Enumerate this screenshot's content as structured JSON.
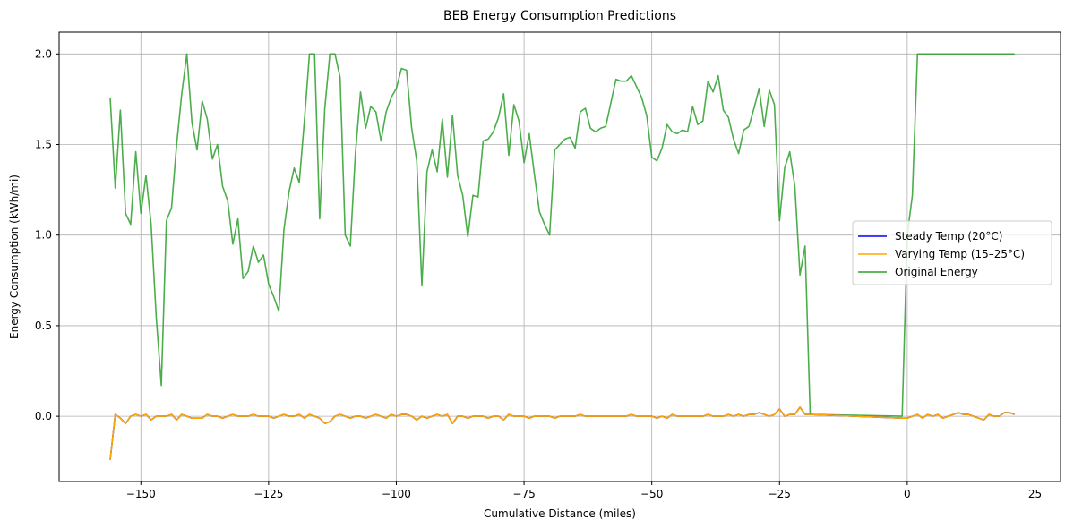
{
  "chart_data": {
    "type": "line",
    "title": "BEB Energy Consumption Predictions",
    "xlabel": "Cumulative Distance (miles)",
    "ylabel": "Energy Consumption (kWh/mi)",
    "xlim": [
      -166,
      30
    ],
    "ylim": [
      -0.36,
      2.12
    ],
    "xticks": [
      -150,
      -125,
      -100,
      -75,
      -50,
      -25,
      0,
      25
    ],
    "xtick_labels": [
      "−150",
      "−125",
      "−100",
      "−75",
      "−50",
      "−25",
      "0",
      "25"
    ],
    "yticks": [
      0.0,
      0.5,
      1.0,
      1.5,
      2.0
    ],
    "ytick_labels": [
      "0.0",
      "0.5",
      "1.0",
      "1.5",
      "2.0"
    ],
    "grid": true,
    "legend_position": "center-right",
    "series": [
      {
        "name": "Steady Temp (20°C)",
        "color": "#0000ff",
        "x": [
          -156,
          -155,
          -154,
          -153,
          -152,
          -151,
          -150,
          -149,
          -148,
          -147,
          -146,
          -145,
          -144,
          -143,
          -142,
          -141,
          -140,
          -139,
          -138,
          -137,
          -136,
          -135,
          -134,
          -133,
          -132,
          -131,
          -130,
          -129,
          -128,
          -127,
          -126,
          -125,
          -124,
          -123,
          -122,
          -121,
          -120,
          -119,
          -118,
          -117,
          -116,
          -115,
          -114,
          -113,
          -112,
          -111,
          -110,
          -109,
          -108,
          -107,
          -106,
          -105,
          -104,
          -103,
          -102,
          -101,
          -100,
          -99,
          -98,
          -97,
          -96,
          -95,
          -94,
          -93,
          -92,
          -91,
          -90,
          -89,
          -88,
          -87,
          -86,
          -85,
          -84,
          -83,
          -82,
          -81,
          -80,
          -79,
          -78,
          -77,
          -76,
          -75,
          -74,
          -73,
          -72,
          -71,
          -70,
          -69,
          -68,
          -67,
          -66,
          -65,
          -64,
          -63,
          -62,
          -61,
          -60,
          -59,
          -58,
          -57,
          -56,
          -55,
          -54,
          -53,
          -52,
          -51,
          -50,
          -49,
          -48,
          -47,
          -46,
          -45,
          -44,
          -43,
          -42,
          -41,
          -40,
          -39,
          -38,
          -37,
          -36,
          -35,
          -34,
          -33,
          -32,
          -31,
          -30,
          -29,
          -28,
          -27,
          -26,
          -25,
          -24,
          -23,
          -22,
          -21,
          -20,
          -19,
          -1,
          0,
          1,
          2,
          3,
          4,
          5,
          6,
          7,
          8,
          9,
          10,
          11,
          12,
          13,
          14,
          15,
          16,
          17,
          18,
          19,
          20,
          21
        ],
        "values": [
          -0.24,
          0.01,
          -0.01,
          -0.04,
          0.0,
          0.01,
          0.0,
          0.01,
          -0.02,
          0.0,
          0.0,
          0.0,
          0.01,
          -0.02,
          0.01,
          0.0,
          -0.01,
          -0.01,
          -0.01,
          0.01,
          0.0,
          0.0,
          -0.01,
          0.0,
          0.01,
          0.0,
          0.0,
          0.0,
          0.01,
          0.0,
          0.0,
          0.0,
          -0.01,
          0.0,
          0.01,
          0.0,
          0.0,
          0.01,
          -0.01,
          0.01,
          0.0,
          -0.01,
          -0.04,
          -0.03,
          0.0,
          0.01,
          0.0,
          -0.01,
          0.0,
          0.0,
          -0.01,
          0.0,
          0.01,
          0.0,
          -0.01,
          0.01,
          0.0,
          0.01,
          0.01,
          0.0,
          -0.02,
          0.0,
          -0.01,
          0.0,
          0.01,
          0.0,
          0.01,
          -0.04,
          0.0,
          0.0,
          -0.01,
          0.0,
          0.0,
          0.0,
          -0.01,
          0.0,
          0.0,
          -0.02,
          0.01,
          0.0,
          0.0,
          0.0,
          -0.01,
          0.0,
          0.0,
          0.0,
          0.0,
          -0.01,
          0.0,
          0.0,
          0.0,
          0.0,
          0.01,
          0.0,
          0.0,
          0.0,
          0.0,
          0.0,
          0.0,
          0.0,
          0.0,
          0.0,
          0.01,
          0.0,
          0.0,
          0.0,
          0.0,
          -0.01,
          0.0,
          -0.01,
          0.01,
          0.0,
          0.0,
          0.0,
          0.0,
          0.0,
          0.0,
          0.01,
          0.0,
          0.0,
          0.0,
          0.01,
          0.0,
          0.01,
          0.0,
          0.01,
          0.01,
          0.02,
          0.01,
          0.0,
          0.01,
          0.04,
          0.0,
          0.01,
          0.01,
          0.05,
          0.01,
          0.01,
          -0.01,
          -0.01,
          0.0,
          0.01,
          -0.01,
          0.01,
          0.0,
          0.01,
          -0.01,
          0.0,
          0.01,
          0.02,
          0.01,
          0.01,
          0.0,
          -0.01,
          -0.02,
          0.01,
          0.0,
          0.0,
          0.02,
          0.02,
          0.01
        ]
      },
      {
        "name": "Varying Temp (15–25°C)",
        "color": "#ffa500",
        "x": [
          -156,
          -155,
          -154,
          -153,
          -152,
          -151,
          -150,
          -149,
          -148,
          -147,
          -146,
          -145,
          -144,
          -143,
          -142,
          -141,
          -140,
          -139,
          -138,
          -137,
          -136,
          -135,
          -134,
          -133,
          -132,
          -131,
          -130,
          -129,
          -128,
          -127,
          -126,
          -125,
          -124,
          -123,
          -122,
          -121,
          -120,
          -119,
          -118,
          -117,
          -116,
          -115,
          -114,
          -113,
          -112,
          -111,
          -110,
          -109,
          -108,
          -107,
          -106,
          -105,
          -104,
          -103,
          -102,
          -101,
          -100,
          -99,
          -98,
          -97,
          -96,
          -95,
          -94,
          -93,
          -92,
          -91,
          -90,
          -89,
          -88,
          -87,
          -86,
          -85,
          -84,
          -83,
          -82,
          -81,
          -80,
          -79,
          -78,
          -77,
          -76,
          -75,
          -74,
          -73,
          -72,
          -71,
          -70,
          -69,
          -68,
          -67,
          -66,
          -65,
          -64,
          -63,
          -62,
          -61,
          -60,
          -59,
          -58,
          -57,
          -56,
          -55,
          -54,
          -53,
          -52,
          -51,
          -50,
          -49,
          -48,
          -47,
          -46,
          -45,
          -44,
          -43,
          -42,
          -41,
          -40,
          -39,
          -38,
          -37,
          -36,
          -35,
          -34,
          -33,
          -32,
          -31,
          -30,
          -29,
          -28,
          -27,
          -26,
          -25,
          -24,
          -23,
          -22,
          -21,
          -20,
          -19,
          -1,
          0,
          1,
          2,
          3,
          4,
          5,
          6,
          7,
          8,
          9,
          10,
          11,
          12,
          13,
          14,
          15,
          16,
          17,
          18,
          19,
          20,
          21
        ],
        "values": [
          -0.24,
          0.01,
          -0.01,
          -0.04,
          0.0,
          0.01,
          0.0,
          0.01,
          -0.02,
          0.0,
          0.0,
          0.0,
          0.01,
          -0.02,
          0.01,
          0.0,
          -0.01,
          -0.01,
          -0.01,
          0.01,
          0.0,
          0.0,
          -0.01,
          0.0,
          0.01,
          0.0,
          0.0,
          0.0,
          0.01,
          0.0,
          0.0,
          0.0,
          -0.01,
          0.0,
          0.01,
          0.0,
          0.0,
          0.01,
          -0.01,
          0.01,
          0.0,
          -0.01,
          -0.04,
          -0.03,
          0.0,
          0.01,
          0.0,
          -0.01,
          0.0,
          0.0,
          -0.01,
          0.0,
          0.01,
          0.0,
          -0.01,
          0.01,
          0.0,
          0.01,
          0.01,
          0.0,
          -0.02,
          0.0,
          -0.01,
          0.0,
          0.01,
          0.0,
          0.01,
          -0.04,
          0.0,
          0.0,
          -0.01,
          0.0,
          0.0,
          0.0,
          -0.01,
          0.0,
          0.0,
          -0.02,
          0.01,
          0.0,
          0.0,
          0.0,
          -0.01,
          0.0,
          0.0,
          0.0,
          0.0,
          -0.01,
          0.0,
          0.0,
          0.0,
          0.0,
          0.01,
          0.0,
          0.0,
          0.0,
          0.0,
          0.0,
          0.0,
          0.0,
          0.0,
          0.0,
          0.01,
          0.0,
          0.0,
          0.0,
          0.0,
          -0.01,
          0.0,
          -0.01,
          0.01,
          0.0,
          0.0,
          0.0,
          0.0,
          0.0,
          0.0,
          0.01,
          0.0,
          0.0,
          0.0,
          0.01,
          0.0,
          0.01,
          0.0,
          0.01,
          0.01,
          0.02,
          0.01,
          0.0,
          0.01,
          0.04,
          0.0,
          0.01,
          0.01,
          0.05,
          0.01,
          0.01,
          -0.01,
          -0.01,
          0.0,
          0.01,
          -0.01,
          0.01,
          0.0,
          0.01,
          -0.01,
          0.0,
          0.01,
          0.02,
          0.01,
          0.01,
          0.0,
          -0.01,
          -0.02,
          0.01,
          0.0,
          0.0,
          0.02,
          0.02,
          0.01
        ]
      },
      {
        "name": "Original Energy",
        "color": "#2ca02c",
        "x": [
          -156,
          -155,
          -154,
          -153,
          -152,
          -151,
          -150,
          -149,
          -148,
          -147,
          -146,
          -145,
          -144,
          -143,
          -142,
          -141,
          -140,
          -139,
          -138,
          -137,
          -136,
          -135,
          -134,
          -133,
          -132,
          -131,
          -130,
          -129,
          -128,
          -127,
          -126,
          -125,
          -124,
          -123,
          -122,
          -121,
          -120,
          -119,
          -118,
          -117,
          -116,
          -115,
          -114,
          -113,
          -112,
          -111,
          -110,
          -109,
          -108,
          -107,
          -106,
          -105,
          -104,
          -103,
          -102,
          -101,
          -100,
          -99,
          -98,
          -97,
          -96,
          -95,
          -94,
          -93,
          -92,
          -91,
          -90,
          -89,
          -88,
          -87,
          -86,
          -85,
          -84,
          -83,
          -82,
          -81,
          -80,
          -79,
          -78,
          -77,
          -76,
          -75,
          -74,
          -73,
          -72,
          -71,
          -70,
          -69,
          -68,
          -67,
          -66,
          -65,
          -64,
          -63,
          -62,
          -61,
          -60,
          -59,
          -58,
          -57,
          -56,
          -55,
          -54,
          -53,
          -52,
          -51,
          -50,
          -49,
          -48,
          -47,
          -46,
          -45,
          -44,
          -43,
          -42,
          -41,
          -40,
          -39,
          -38,
          -37,
          -36,
          -35,
          -34,
          -33,
          -32,
          -31,
          -30,
          -29,
          -28,
          -27,
          -26,
          -25,
          -24,
          -23,
          -22,
          -21,
          -20,
          -19,
          -1,
          0,
          1,
          2,
          21
        ],
        "values": [
          1.76,
          1.26,
          1.69,
          1.12,
          1.06,
          1.46,
          1.12,
          1.33,
          1.06,
          0.55,
          0.17,
          1.08,
          1.15,
          1.5,
          1.78,
          2.0,
          1.62,
          1.47,
          1.74,
          1.64,
          1.42,
          1.5,
          1.27,
          1.19,
          0.95,
          1.09,
          0.76,
          0.8,
          0.94,
          0.85,
          0.89,
          0.73,
          0.66,
          0.58,
          1.03,
          1.24,
          1.37,
          1.29,
          1.63,
          2.0,
          2.0,
          1.09,
          1.7,
          2.0,
          2.0,
          1.87,
          1.0,
          0.94,
          1.45,
          1.79,
          1.59,
          1.71,
          1.68,
          1.52,
          1.68,
          1.76,
          1.81,
          1.92,
          1.91,
          1.59,
          1.41,
          0.72,
          1.35,
          1.47,
          1.35,
          1.64,
          1.32,
          1.66,
          1.33,
          1.22,
          0.99,
          1.22,
          1.21,
          1.52,
          1.53,
          1.57,
          1.65,
          1.78,
          1.44,
          1.72,
          1.63,
          1.4,
          1.56,
          1.34,
          1.13,
          1.06,
          1.0,
          1.47,
          1.5,
          1.53,
          1.54,
          1.48,
          1.68,
          1.7,
          1.59,
          1.57,
          1.59,
          1.6,
          1.73,
          1.86,
          1.85,
          1.85,
          1.88,
          1.82,
          1.76,
          1.66,
          1.43,
          1.41,
          1.48,
          1.61,
          1.57,
          1.56,
          1.58,
          1.57,
          1.71,
          1.61,
          1.63,
          1.85,
          1.79,
          1.88,
          1.69,
          1.65,
          1.53,
          1.45,
          1.58,
          1.6,
          1.7,
          1.81,
          1.6,
          1.8,
          1.72,
          1.08,
          1.37,
          1.46,
          1.27,
          0.78,
          0.94,
          0.01,
          0.0,
          1.0,
          1.22,
          2.0,
          2.0
        ]
      }
    ]
  }
}
